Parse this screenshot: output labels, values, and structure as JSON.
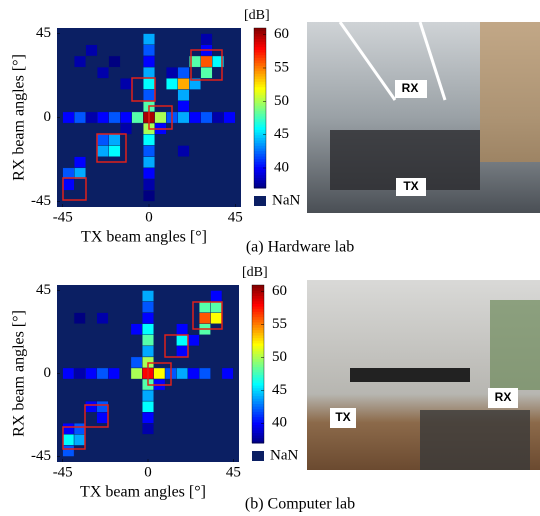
{
  "chart_data": [
    {
      "type": "heatmap",
      "caption": "(a) Hardware lab",
      "xlabel": "TX beam angles [°]",
      "ylabel": "RX beam angles [°]",
      "xlim": [
        -48,
        48
      ],
      "ylim": [
        -48,
        48
      ],
      "xticks": [
        -45,
        0,
        45
      ],
      "yticks": [
        -45,
        0,
        45
      ],
      "x": [
        -42,
        -36,
        -30,
        -24,
        -18,
        -12,
        -6,
        0,
        6,
        12,
        18,
        24,
        30,
        36,
        42
      ],
      "y": [
        42,
        36,
        30,
        24,
        18,
        12,
        6,
        0,
        -6,
        -12,
        -18,
        -24,
        -30,
        -36,
        -42
      ],
      "colormap": "jet",
      "nan_color": "#0b1f63",
      "box_color": "#e0201b",
      "clim": [
        37,
        61
      ],
      "cticks": [
        40,
        45,
        50,
        55,
        60
      ],
      "colorbar_label": "[dB]",
      "nan_label": "NaN",
      "photo_labels": [
        "RX",
        "TX"
      ],
      "values": [
        [
          null,
          null,
          null,
          null,
          null,
          null,
          null,
          44,
          null,
          null,
          null,
          null,
          38,
          null,
          null
        ],
        [
          null,
          null,
          38,
          null,
          null,
          null,
          null,
          42,
          null,
          null,
          null,
          null,
          40,
          null,
          null
        ],
        [
          null,
          38,
          null,
          null,
          37,
          null,
          null,
          40,
          null,
          null,
          null,
          48,
          56,
          46,
          null
        ],
        [
          null,
          null,
          null,
          38,
          null,
          null,
          null,
          44,
          null,
          38,
          42,
          null,
          48,
          null,
          null
        ],
        [
          null,
          null,
          null,
          null,
          null,
          38,
          null,
          46,
          null,
          46,
          54,
          44,
          null,
          null,
          null
        ],
        [
          null,
          null,
          null,
          null,
          null,
          null,
          null,
          42,
          null,
          null,
          44,
          null,
          null,
          null,
          null
        ],
        [
          null,
          null,
          null,
          null,
          null,
          null,
          null,
          48,
          null,
          null,
          40,
          null,
          null,
          null,
          null
        ],
        [
          40,
          42,
          38,
          40,
          42,
          40,
          48,
          60,
          50,
          42,
          44,
          40,
          42,
          38,
          40
        ],
        [
          null,
          null,
          null,
          null,
          null,
          38,
          null,
          50,
          40,
          null,
          null,
          null,
          null,
          null,
          null
        ],
        [
          null,
          null,
          null,
          42,
          44,
          null,
          null,
          46,
          null,
          null,
          null,
          null,
          null,
          null,
          null
        ],
        [
          null,
          null,
          null,
          44,
          46,
          null,
          null,
          42,
          null,
          null,
          38,
          null,
          null,
          null,
          null
        ],
        [
          null,
          40,
          null,
          null,
          null,
          null,
          null,
          44,
          null,
          null,
          null,
          null,
          null,
          null,
          null
        ],
        [
          42,
          44,
          null,
          null,
          null,
          null,
          null,
          40,
          null,
          null,
          null,
          null,
          null,
          null,
          null
        ],
        [
          40,
          null,
          null,
          null,
          null,
          null,
          null,
          38,
          null,
          null,
          null,
          null,
          null,
          null,
          null
        ],
        [
          null,
          null,
          null,
          null,
          null,
          null,
          null,
          36,
          null,
          null,
          null,
          null,
          null,
          null,
          null
        ]
      ]
    },
    {
      "type": "heatmap",
      "caption": "(b) Computer lab",
      "xlabel": "TX beam angles [°]",
      "ylabel": "RX beam angles [°]",
      "xlim": [
        -48,
        48
      ],
      "ylim": [
        -48,
        48
      ],
      "xticks": [
        -45,
        0,
        45
      ],
      "yticks": [
        -45,
        0,
        45
      ],
      "x": [
        -42,
        -36,
        -30,
        -24,
        -18,
        -12,
        -6,
        0,
        6,
        12,
        18,
        24,
        30,
        36,
        42
      ],
      "y": [
        42,
        36,
        30,
        24,
        18,
        12,
        6,
        0,
        -6,
        -12,
        -18,
        -24,
        -30,
        -36,
        -42
      ],
      "colormap": "jet",
      "nan_color": "#0b1f63",
      "box_color": "#e0201b",
      "clim": [
        37,
        61
      ],
      "cticks": [
        40,
        45,
        50,
        55,
        60
      ],
      "colorbar_label": "[dB]",
      "nan_label": "NaN",
      "photo_labels": [
        "TX",
        "RX"
      ],
      "values": [
        [
          null,
          null,
          null,
          null,
          null,
          null,
          null,
          44,
          null,
          null,
          null,
          null,
          null,
          40,
          null
        ],
        [
          null,
          null,
          null,
          null,
          null,
          null,
          null,
          42,
          null,
          null,
          null,
          null,
          48,
          48,
          null
        ],
        [
          null,
          37,
          null,
          38,
          null,
          null,
          null,
          40,
          null,
          null,
          null,
          null,
          56,
          52,
          null
        ],
        [
          null,
          null,
          null,
          null,
          null,
          null,
          40,
          46,
          null,
          null,
          40,
          null,
          48,
          null,
          null
        ],
        [
          null,
          null,
          null,
          null,
          null,
          null,
          null,
          48,
          null,
          null,
          46,
          40,
          null,
          null,
          null
        ],
        [
          null,
          null,
          null,
          null,
          null,
          null,
          null,
          44,
          null,
          null,
          40,
          null,
          null,
          null,
          null
        ],
        [
          null,
          null,
          null,
          null,
          null,
          null,
          42,
          50,
          null,
          null,
          null,
          null,
          null,
          null,
          null
        ],
        [
          40,
          38,
          40,
          42,
          40,
          null,
          50,
          58,
          52,
          42,
          44,
          40,
          42,
          null,
          40
        ],
        [
          null,
          null,
          null,
          null,
          null,
          null,
          null,
          48,
          40,
          null,
          null,
          null,
          null,
          null,
          null
        ],
        [
          null,
          null,
          null,
          null,
          null,
          null,
          null,
          44,
          null,
          null,
          null,
          null,
          null,
          null,
          null
        ],
        [
          null,
          null,
          40,
          42,
          null,
          null,
          null,
          46,
          null,
          null,
          null,
          null,
          null,
          null,
          null
        ],
        [
          null,
          null,
          null,
          40,
          null,
          null,
          null,
          40,
          null,
          null,
          null,
          null,
          null,
          null,
          null
        ],
        [
          40,
          42,
          null,
          null,
          null,
          null,
          null,
          38,
          null,
          null,
          null,
          null,
          null,
          null,
          null
        ],
        [
          46,
          44,
          null,
          null,
          null,
          null,
          null,
          null,
          null,
          null,
          null,
          null,
          null,
          null,
          null
        ],
        [
          42,
          null,
          null,
          null,
          null,
          null,
          null,
          null,
          null,
          null,
          null,
          null,
          null,
          null,
          null
        ]
      ]
    }
  ]
}
